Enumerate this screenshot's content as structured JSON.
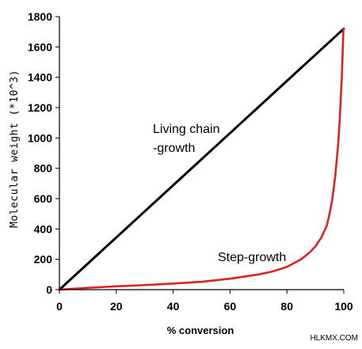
{
  "chart_data": {
    "type": "line",
    "xlabel": "% conversion",
    "ylabel": "Molecular weight (*10^3)",
    "xlim": [
      0,
      100
    ],
    "ylim": [
      0,
      1800
    ],
    "xticks": [
      "0",
      "20",
      "40",
      "60",
      "80",
      "100"
    ],
    "yticks": [
      "0",
      "200",
      "400",
      "600",
      "800",
      "1000",
      "1200",
      "1400",
      "1600",
      "1800"
    ],
    "grid": false,
    "legend": "none",
    "series": [
      {
        "name": "Living chain-growth",
        "color": "#000000",
        "x": [
          0,
          100
        ],
        "y": [
          0,
          1720
        ]
      },
      {
        "name": "Step-growth",
        "color": "#dd2222",
        "x": [
          0,
          10,
          20,
          30,
          40,
          50,
          60,
          70,
          75,
          80,
          85,
          88,
          90,
          92,
          94,
          95,
          96,
          97,
          98,
          98.5,
          99,
          99.3,
          99.5,
          99.7,
          99.8,
          99.9
        ],
        "y": [
          0,
          12,
          22,
          30,
          40,
          52,
          72,
          100,
          120,
          150,
          200,
          245,
          285,
          340,
          420,
          500,
          600,
          750,
          950,
          1100,
          1280,
          1400,
          1500,
          1620,
          1680,
          1720
        ]
      }
    ],
    "annotations": [
      {
        "key": "living",
        "lines": [
          "Living chain",
          "-growth"
        ]
      },
      {
        "key": "step",
        "lines": [
          "Step-growth"
        ]
      }
    ]
  },
  "watermark": "HLKMX.COM"
}
